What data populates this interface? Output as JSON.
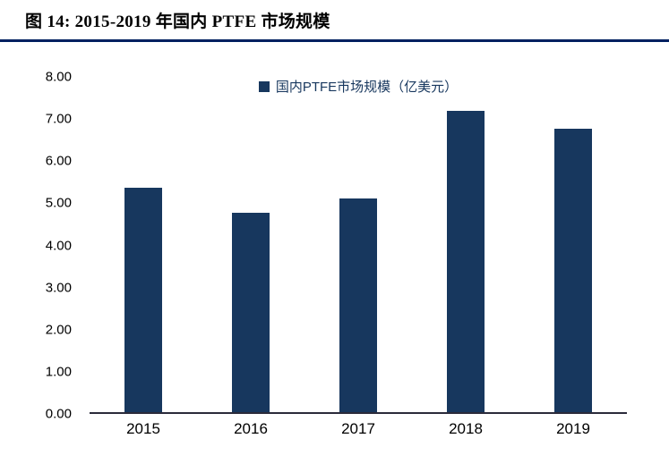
{
  "header": {
    "title": "图 14:  2015-2019 年国内 PTFE 市场规模"
  },
  "colors": {
    "accent": "#17375E",
    "bar": "#17375E",
    "divider": "#002060",
    "axis_line": "#2b2b3a"
  },
  "chart_data": {
    "type": "bar",
    "title": "2015-2019 年国内 PTFE 市场规模",
    "legend": "国内PTFE市场规模（亿美元）",
    "legend_position": "top",
    "categories": [
      "2015",
      "2016",
      "2017",
      "2018",
      "2019"
    ],
    "values": [
      5.35,
      4.75,
      5.1,
      7.18,
      6.76
    ],
    "xlabel": "",
    "ylabel": "",
    "ylim": [
      0,
      8
    ],
    "ytick_step": 1,
    "ytick_labels": [
      "0.00",
      "1.00",
      "2.00",
      "3.00",
      "4.00",
      "5.00",
      "6.00",
      "7.00",
      "8.00"
    ],
    "grid": false
  }
}
